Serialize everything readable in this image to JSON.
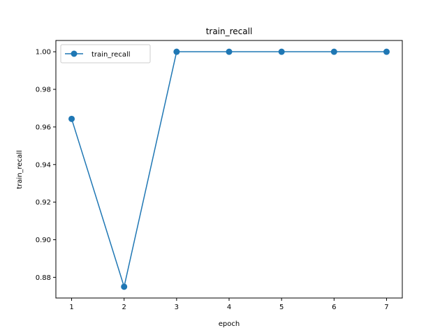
{
  "chart_data": {
    "type": "line",
    "title": "train_recall",
    "xlabel": "epoch",
    "ylabel": "train_recall",
    "x": [
      1,
      2,
      3,
      4,
      5,
      6,
      7
    ],
    "series": [
      {
        "name": "train_recall",
        "values": [
          0.9643,
          0.875,
          1.0,
          1.0,
          1.0,
          1.0,
          1.0
        ],
        "color": "#1f77b4",
        "marker": "circle"
      }
    ],
    "xlim": [
      0.7,
      7.3
    ],
    "ylim": [
      0.869,
      1.006
    ],
    "xticks": [
      "1",
      "2",
      "3",
      "4",
      "5",
      "6",
      "7"
    ],
    "yticks": [
      "0.88",
      "0.90",
      "0.92",
      "0.94",
      "0.96",
      "0.98",
      "1.00"
    ],
    "grid": false,
    "legend_position": "top-left"
  }
}
